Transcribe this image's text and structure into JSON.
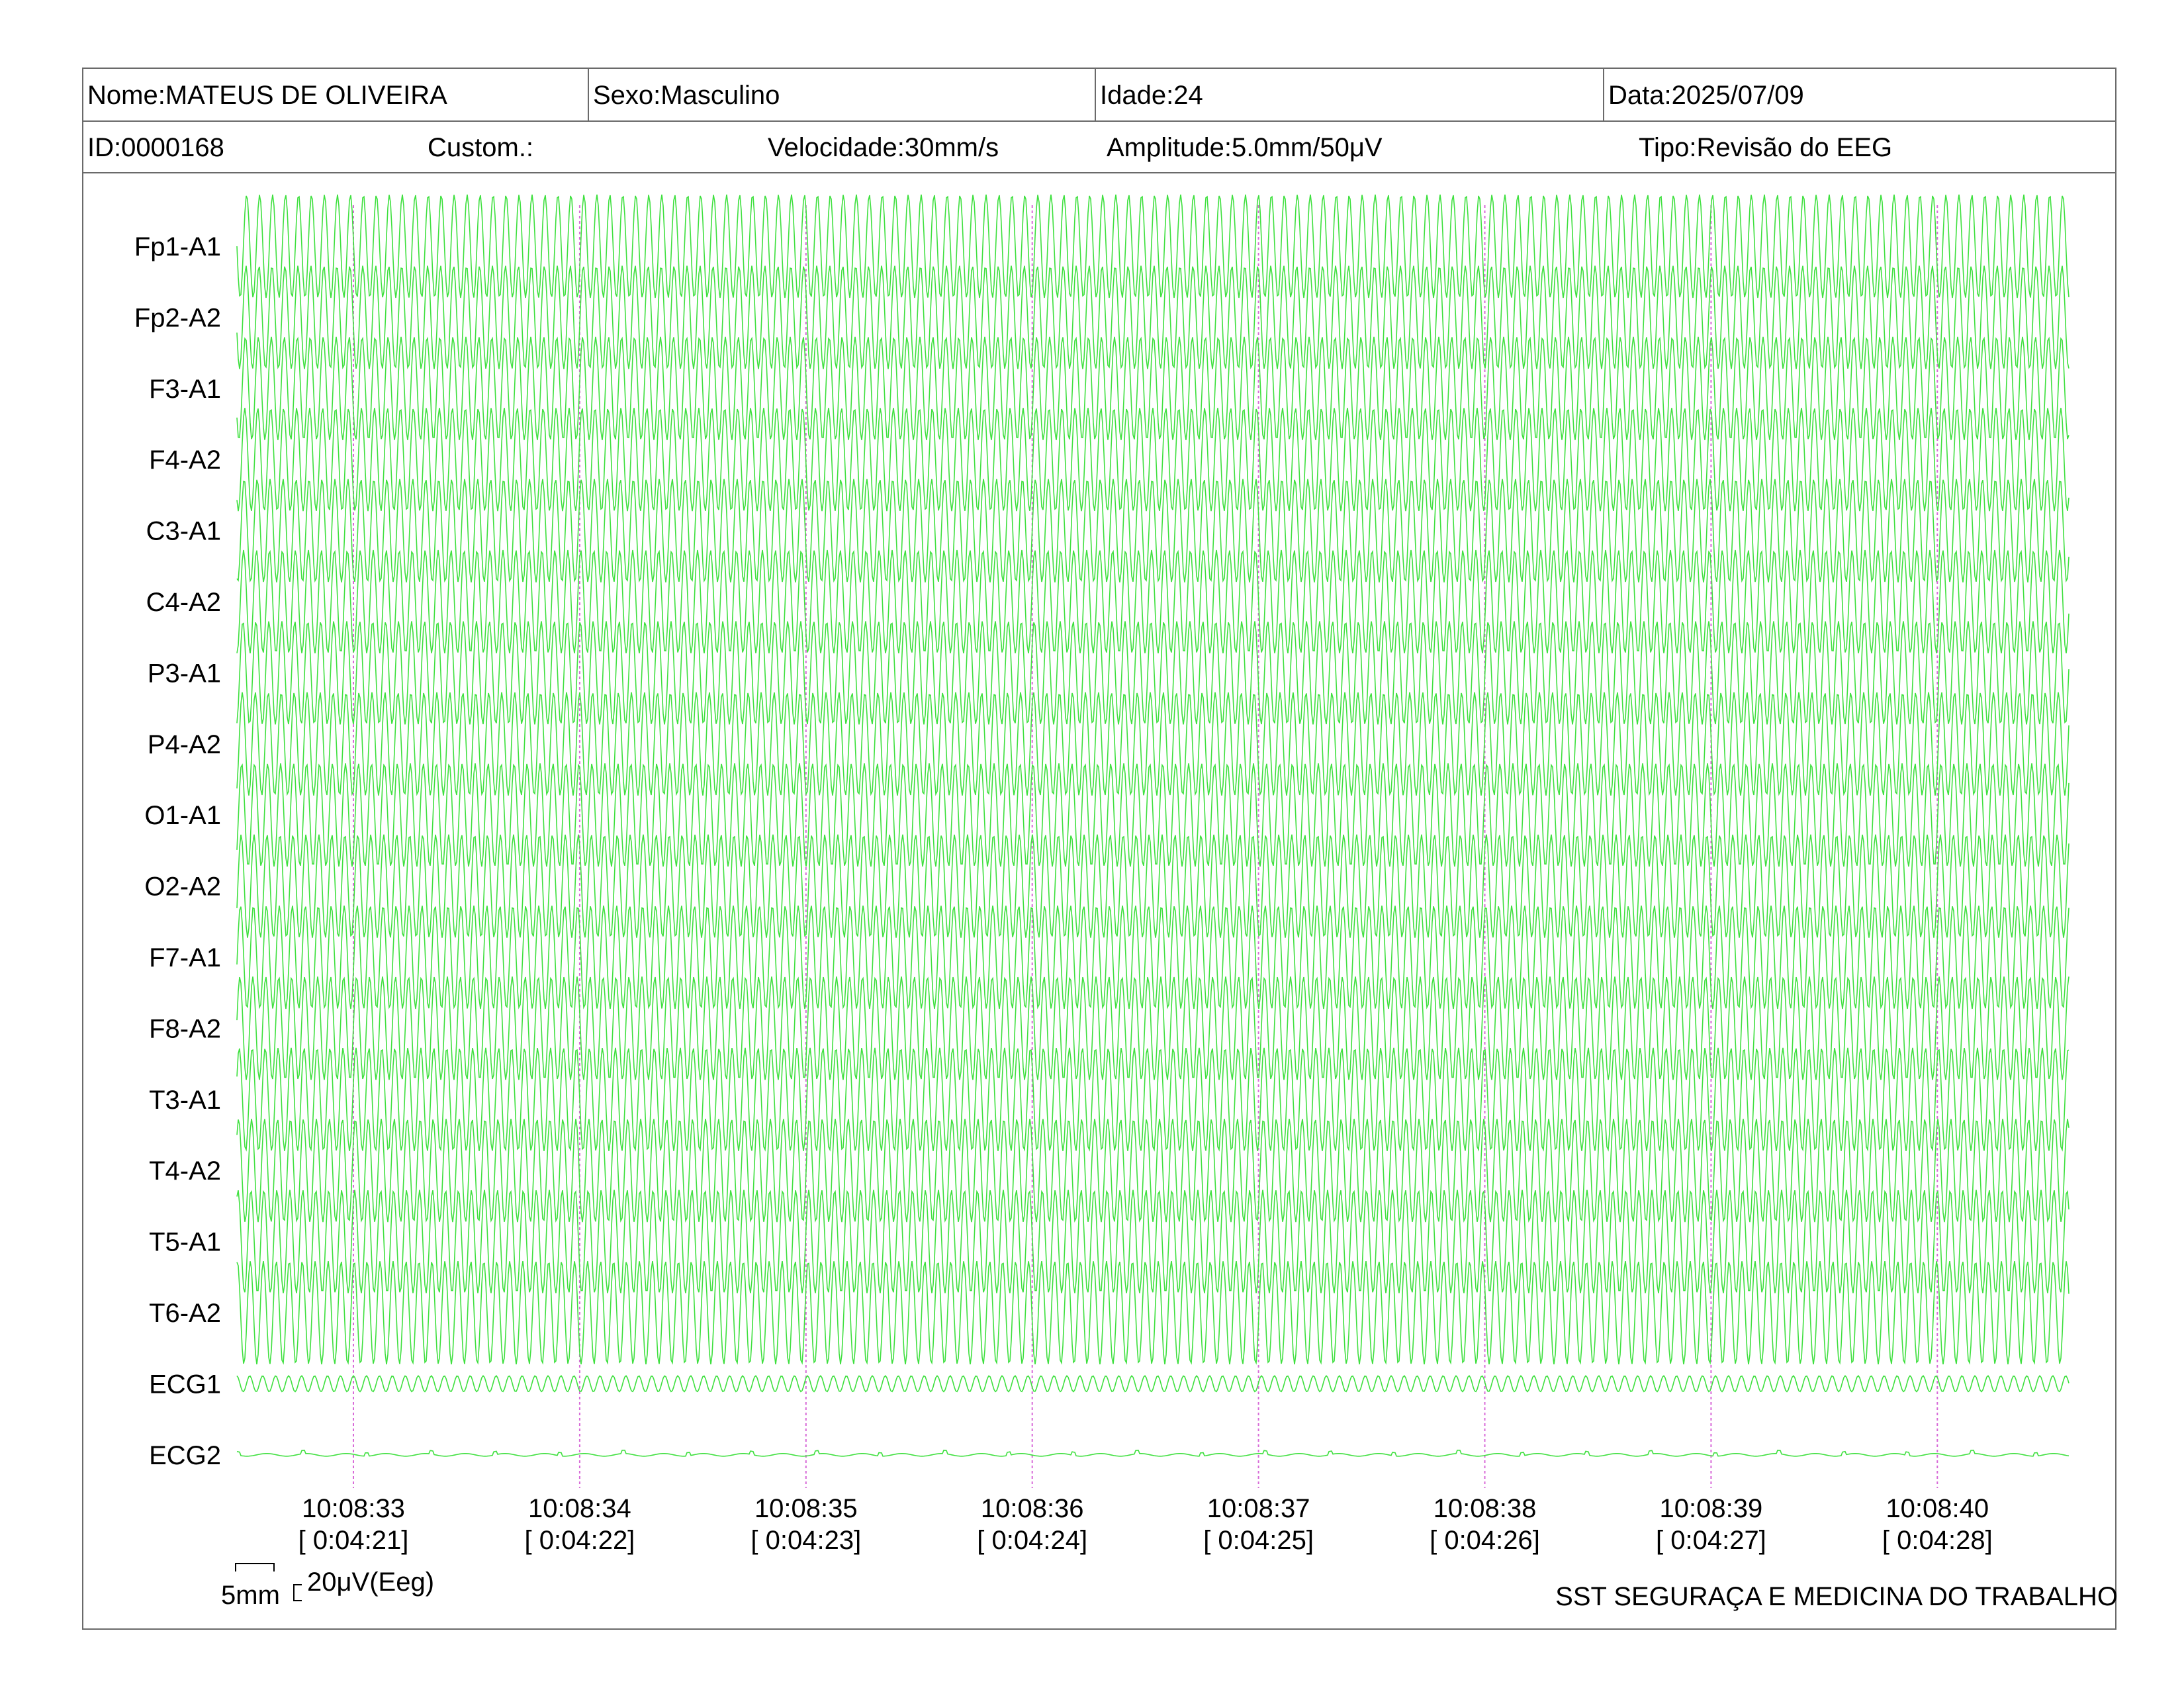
{
  "header": {
    "nome": "Nome:MATEUS DE OLIVEIRA",
    "sexo": "Sexo:Masculino",
    "idade": "Idade:24",
    "data": "Data:2025/07/09",
    "id": "ID:0000168",
    "custom": "Custom.:",
    "velocidade": "Velocidade:30mm/s",
    "amplitude": "Amplitude:5.0mm/50μV",
    "tipo": "Tipo:Revisão do EEG"
  },
  "colors": {
    "trace": "#3fe03f",
    "time_marker": "#d86ad8",
    "border": "#6a6a6a"
  },
  "scale": {
    "time_label": "5mm",
    "amplitude_label": "20μV(Eeg)"
  },
  "institution": "SST SEGURAÇA E MEDICINA DO TRABALHO",
  "chart_data": {
    "type": "line",
    "channels": [
      "Fp1-A1",
      "Fp2-A2",
      "F3-A1",
      "F4-A2",
      "C3-A1",
      "C4-A2",
      "P3-A1",
      "P4-A2",
      "O1-A1",
      "O2-A2",
      "F7-A1",
      "F8-A2",
      "T3-A1",
      "T4-A2",
      "T5-A1",
      "T6-A2",
      "ECG1",
      "ECG2"
    ],
    "time_marks": [
      {
        "clock": "10:08:33",
        "elapsed": "[ 0:04:21]"
      },
      {
        "clock": "10:08:34",
        "elapsed": "[ 0:04:22]"
      },
      {
        "clock": "10:08:35",
        "elapsed": "[ 0:04:23]"
      },
      {
        "clock": "10:08:36",
        "elapsed": "[ 0:04:24]"
      },
      {
        "clock": "10:08:37",
        "elapsed": "[ 0:04:25]"
      },
      {
        "clock": "10:08:38",
        "elapsed": "[ 0:04:26]"
      },
      {
        "clock": "10:08:39",
        "elapsed": "[ 0:04:27]"
      },
      {
        "clock": "10:08:40",
        "elapsed": "[ 0:04:28]"
      }
    ],
    "grid": false
  }
}
